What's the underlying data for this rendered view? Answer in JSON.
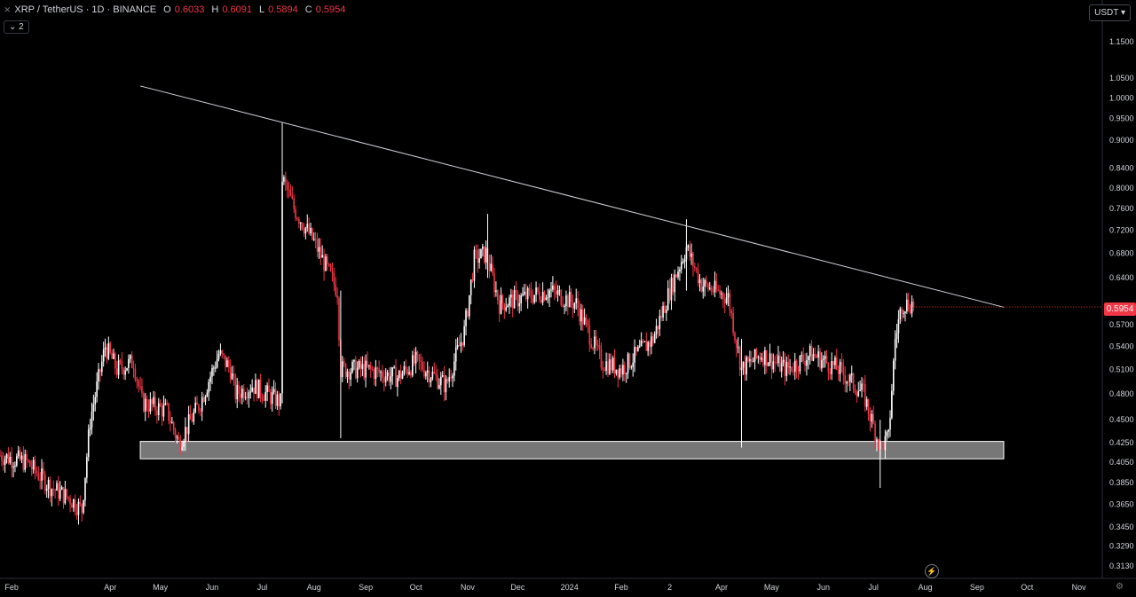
{
  "header": {
    "symbol": "XRP / TetherUS · 1D · BINANCE",
    "open_label": "O",
    "open": "0.6033",
    "high_label": "H",
    "high": "0.6091",
    "low_label": "L",
    "low": "0.5894",
    "close_label": "C",
    "close": "0.5954",
    "indicators_count": "2"
  },
  "currency_button": "USDT",
  "last_price_tag": "0.5954",
  "colors": {
    "up": "#ffffff",
    "down": "#f23645",
    "background": "#000000",
    "trendline": "#d1d4dc",
    "zone": "#8c8c8c"
  },
  "chart_data": {
    "type": "candlestick",
    "yscale": "log",
    "ylim": [
      0.305,
      1.22
    ],
    "xlim": [
      "2023-01-25",
      "2024-11-15"
    ],
    "x_ticks": [
      {
        "date": "2023-02-01",
        "label": "Feb"
      },
      {
        "date": "2023-04-01",
        "label": "Apr"
      },
      {
        "date": "2023-05-01",
        "label": "May"
      },
      {
        "date": "2023-06-01",
        "label": "Jun"
      },
      {
        "date": "2023-07-01",
        "label": "Jul"
      },
      {
        "date": "2023-08-01",
        "label": "Aug"
      },
      {
        "date": "2023-09-01",
        "label": "Sep"
      },
      {
        "date": "2023-10-01",
        "label": "Oct"
      },
      {
        "date": "2023-11-01",
        "label": "Nov"
      },
      {
        "date": "2023-12-01",
        "label": "Dec"
      },
      {
        "date": "2024-01-01",
        "label": "2024"
      },
      {
        "date": "2024-02-01",
        "label": "Feb"
      },
      {
        "date": "2024-03-01",
        "label": "2"
      },
      {
        "date": "2024-04-01",
        "label": "Apr"
      },
      {
        "date": "2024-05-01",
        "label": "May"
      },
      {
        "date": "2024-06-01",
        "label": "Jun"
      },
      {
        "date": "2024-07-01",
        "label": "Jul"
      },
      {
        "date": "2024-08-01",
        "label": "Aug"
      },
      {
        "date": "2024-09-01",
        "label": "Sep"
      },
      {
        "date": "2024-10-01",
        "label": "Oct"
      },
      {
        "date": "2024-11-01",
        "label": "Nov"
      }
    ],
    "y_ticks": [
      "1.1500",
      "1.0500",
      "1.0000",
      "0.9500",
      "0.9000",
      "0.8400",
      "0.8000",
      "0.7600",
      "0.7200",
      "0.6800",
      "0.6400",
      "0.5700",
      "0.5400",
      "0.5100",
      "0.4800",
      "0.4500",
      "0.4250",
      "0.4050",
      "0.3850",
      "0.3650",
      "0.3450",
      "0.3290",
      "0.3130"
    ],
    "price_path": [
      [
        "2023-01-25",
        0.412
      ],
      [
        "2023-02-10",
        0.405
      ],
      [
        "2023-02-25",
        0.38
      ],
      [
        "2023-03-08",
        0.37
      ],
      [
        "2023-03-15",
        0.36
      ],
      [
        "2023-03-20",
        0.45
      ],
      [
        "2023-03-29",
        0.54
      ],
      [
        "2023-04-05",
        0.51
      ],
      [
        "2023-04-15",
        0.52
      ],
      [
        "2023-04-20",
        0.47
      ],
      [
        "2023-05-05",
        0.46
      ],
      [
        "2023-05-12",
        0.425
      ],
      [
        "2023-05-25",
        0.47
      ],
      [
        "2023-06-05",
        0.53
      ],
      [
        "2023-06-12",
        0.51
      ],
      [
        "2023-06-15",
        0.48
      ],
      [
        "2023-06-25",
        0.49
      ],
      [
        "2023-07-12",
        0.47
      ],
      [
        "2023-07-13",
        0.82
      ],
      [
        "2023-07-20",
        0.76
      ],
      [
        "2023-08-01",
        0.7
      ],
      [
        "2023-08-15",
        0.62
      ],
      [
        "2023-08-17",
        0.51
      ],
      [
        "2023-09-01",
        0.51
      ],
      [
        "2023-09-20",
        0.5
      ],
      [
        "2023-10-01",
        0.52
      ],
      [
        "2023-10-19",
        0.49
      ],
      [
        "2023-10-30",
        0.56
      ],
      [
        "2023-11-05",
        0.67
      ],
      [
        "2023-11-12",
        0.68
      ],
      [
        "2023-11-20",
        0.6
      ],
      [
        "2023-12-05",
        0.61
      ],
      [
        "2023-12-20",
        0.62
      ],
      [
        "2024-01-05",
        0.6
      ],
      [
        "2024-01-20",
        0.52
      ],
      [
        "2024-02-01",
        0.51
      ],
      [
        "2024-02-20",
        0.55
      ],
      [
        "2024-03-01",
        0.62
      ],
      [
        "2024-03-11",
        0.69
      ],
      [
        "2024-03-20",
        0.63
      ],
      [
        "2024-04-05",
        0.61
      ],
      [
        "2024-04-13",
        0.51
      ],
      [
        "2024-04-25",
        0.53
      ],
      [
        "2024-05-10",
        0.51
      ],
      [
        "2024-05-25",
        0.53
      ],
      [
        "2024-06-10",
        0.51
      ],
      [
        "2024-06-25",
        0.48
      ],
      [
        "2024-07-05",
        0.42
      ],
      [
        "2024-07-10",
        0.43
      ],
      [
        "2024-07-14",
        0.55
      ],
      [
        "2024-07-18",
        0.6
      ],
      [
        "2024-07-25",
        0.6
      ]
    ],
    "trendline": {
      "from": [
        "2023-04-19",
        1.03
      ],
      "to": [
        "2024-09-17",
        0.595
      ]
    },
    "support_zone": {
      "from": "2023-04-19",
      "to": "2024-09-17",
      "low": 0.4085,
      "high": 0.4265
    },
    "last_price": 0.5954
  }
}
